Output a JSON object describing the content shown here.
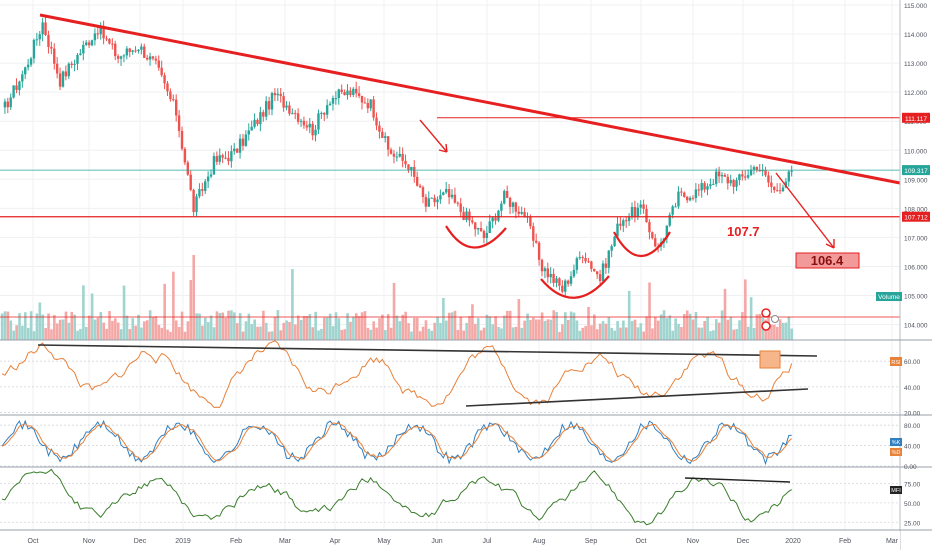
{
  "chart_data": {
    "type": "line",
    "instrument": "USDJPY",
    "xlabels": [
      "Oct",
      "Nov",
      "Dec",
      "2019",
      "Feb",
      "Mar",
      "Apr",
      "May",
      "Jun",
      "Jul",
      "Aug",
      "Sep",
      "Oct",
      "Nov",
      "Dec",
      "2020",
      "Feb",
      "Mar"
    ],
    "price_axis": {
      "ticks": [
        "115.000",
        "114.000",
        "113.000",
        "112.000",
        "111.000",
        "110.000",
        "109.000",
        "108.000",
        "107.000",
        "106.000",
        "105.000",
        "104.000"
      ],
      "ylim": [
        103.8,
        115.1
      ]
    },
    "price_markers": [
      {
        "label": "111.117",
        "value": 111.117,
        "color": "#e62020"
      },
      {
        "label": "109.317",
        "value": 109.317,
        "color": "#26a69a"
      },
      {
        "label": "107.712",
        "value": 107.712,
        "color": "#e62020"
      }
    ],
    "price_close_keypoints": [
      [
        0,
        111.3
      ],
      [
        8,
        112.8
      ],
      [
        14,
        114.4
      ],
      [
        20,
        112.4
      ],
      [
        27,
        113.4
      ],
      [
        33,
        114.2
      ],
      [
        40,
        113.2
      ],
      [
        47,
        113.6
      ],
      [
        53,
        112.9
      ],
      [
        60,
        111.3
      ],
      [
        66,
        108.0
      ],
      [
        73,
        109.6
      ],
      [
        80,
        109.9
      ],
      [
        87,
        110.9
      ],
      [
        94,
        111.9
      ],
      [
        100,
        111.4
      ],
      [
        107,
        110.7
      ],
      [
        113,
        111.8
      ],
      [
        120,
        112.0
      ],
      [
        127,
        111.6
      ],
      [
        133,
        110.0
      ],
      [
        140,
        109.5
      ],
      [
        146,
        108.1
      ],
      [
        153,
        108.5
      ],
      [
        160,
        107.7
      ],
      [
        166,
        107.0
      ],
      [
        173,
        108.4
      ],
      [
        180,
        107.8
      ],
      [
        186,
        106.0
      ],
      [
        193,
        105.2
      ],
      [
        200,
        106.5
      ],
      [
        206,
        105.6
      ],
      [
        213,
        107.6
      ],
      [
        220,
        108.0
      ],
      [
        226,
        106.6
      ],
      [
        233,
        108.4
      ],
      [
        240,
        108.6
      ],
      [
        246,
        109.1
      ],
      [
        253,
        108.9
      ],
      [
        260,
        109.5
      ],
      [
        266,
        108.6
      ],
      [
        272,
        109.2
      ]
    ],
    "annotations": [
      {
        "text": "107.7",
        "color": "#e62020"
      },
      {
        "text": "106.4",
        "color": "#e62020"
      }
    ],
    "volume_label": "Volume",
    "indicators": [
      {
        "name": "RSI",
        "tag": "RSI",
        "ticks": [
          "60.00",
          "40.00",
          "20.00"
        ],
        "ylim": [
          18,
          75
        ],
        "color": "#e8813a"
      },
      {
        "name": "Stochastic",
        "tags": [
          "%K",
          "%D"
        ],
        "ticks": [
          "80.00",
          "40.00",
          "0.00"
        ],
        "ylim": [
          -2,
          96
        ],
        "colors": [
          "#2f7fc1",
          "#e8813a"
        ]
      },
      {
        "name": "MFI",
        "tag": "MFI",
        "ticks": [
          "75.00",
          "50.00",
          "25.00"
        ],
        "ylim": [
          15,
          95
        ],
        "color": "#3a7d2c"
      }
    ],
    "grid": true
  },
  "colors": {
    "up": "#26a69a",
    "down": "#ef5350",
    "trendline": "#e62020",
    "support": "#e62020",
    "current": "#26a69a"
  }
}
